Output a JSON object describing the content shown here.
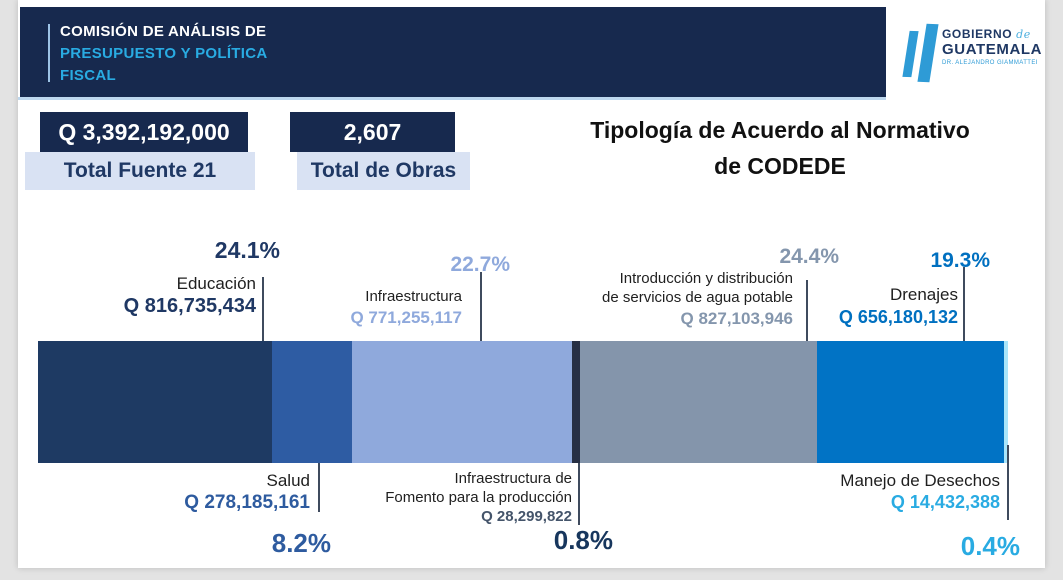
{
  "header": {
    "commission_line1": "COMISIÓN DE ANÁLISIS DE",
    "commission_line2": "PRESUPUESTO Y POLÍTICA",
    "commission_line3": "FISCAL",
    "logo": {
      "name_word1": "GOBIERNO",
      "name_de": "de",
      "name_word2": "GUATEMALA",
      "subtitle": "DR. ALEJANDRO GIAMMATTEI"
    }
  },
  "stats": [
    {
      "value": "Q 3,392,192,000",
      "label": "Total Fuente 21"
    },
    {
      "value": "2,607",
      "label": "Total de Obras"
    }
  ],
  "title_lines": [
    "Tipología de Acuerdo al Normativo",
    "de CODEDE"
  ],
  "colors": {
    "header_navy": "#17294e",
    "header_cyan": "#29abe2",
    "stat_light_blue": "#d9e2f3",
    "logo_blue": "#2e9bd6"
  },
  "chart_data": {
    "type": "bar",
    "variant": "horizontal-stacked-percent",
    "title": "Tipología de Acuerdo al Normativo de CODEDE",
    "total_amount": "Q 3,392,192,000",
    "total_obras": "2,607",
    "legend_position": "callouts",
    "grid": false,
    "segments": [
      {
        "label": "Educación",
        "label_lines": [
          "Educación"
        ],
        "amount": "Q 816,735,434",
        "percent": 24.1,
        "percent_label": "24.1%",
        "color": "#1e3a63",
        "amount_color": "#1f3864",
        "percent_color": "#1f3864",
        "callout_position": "top"
      },
      {
        "label": "Salud",
        "label_lines": [
          "Salud"
        ],
        "amount": "Q 278,185,161",
        "percent": 8.2,
        "percent_label": "8.2%",
        "color": "#2e5ca3",
        "amount_color": "#2e5b9f",
        "percent_color": "#2e5b9f",
        "callout_position": "bottom"
      },
      {
        "label": "Infraestructura",
        "label_lines": [
          "Infraestructura"
        ],
        "amount": "Q 771,255,117",
        "percent": 22.7,
        "percent_label": "22.7%",
        "color": "#8fa9dc",
        "amount_color": "#8fa9dc",
        "percent_color": "#8fa9dc",
        "callout_position": "top"
      },
      {
        "label": "Infraestructura de Fomento para la producción",
        "label_lines": [
          "Infraestructura de",
          "Fomento para la producción"
        ],
        "amount": "Q 28,299,822",
        "percent": 0.8,
        "percent_label": "0.8%",
        "color": "#262f44",
        "amount_color": "#44546a",
        "percent_color": "#17365d",
        "callout_position": "bottom"
      },
      {
        "label": "Introducción y distribución de servicios de agua potable",
        "label_lines": [
          "Introducción y distribución",
          "de servicios de agua potable"
        ],
        "amount": "Q 827,103,946",
        "percent": 24.4,
        "percent_label": "24.4%",
        "color": "#8495ab",
        "amount_color": "#8496ad",
        "percent_color": "#8496ad",
        "callout_position": "top"
      },
      {
        "label": "Drenajes",
        "label_lines": [
          "Drenajes"
        ],
        "amount": "Q 656,180,132",
        "percent": 19.3,
        "percent_label": "19.3%",
        "color": "#0173c5",
        "amount_color": "#0070c0",
        "percent_color": "#0070c0",
        "callout_position": "top"
      },
      {
        "label": "Manejo de Desechos",
        "label_lines": [
          "Manejo de Desechos"
        ],
        "amount": "Q 14,432,388",
        "percent": 0.4,
        "percent_label": "0.4%",
        "color": "#a9e5fa",
        "amount_color": "#29abe2",
        "percent_color": "#29abe2",
        "callout_position": "bottom"
      }
    ]
  }
}
